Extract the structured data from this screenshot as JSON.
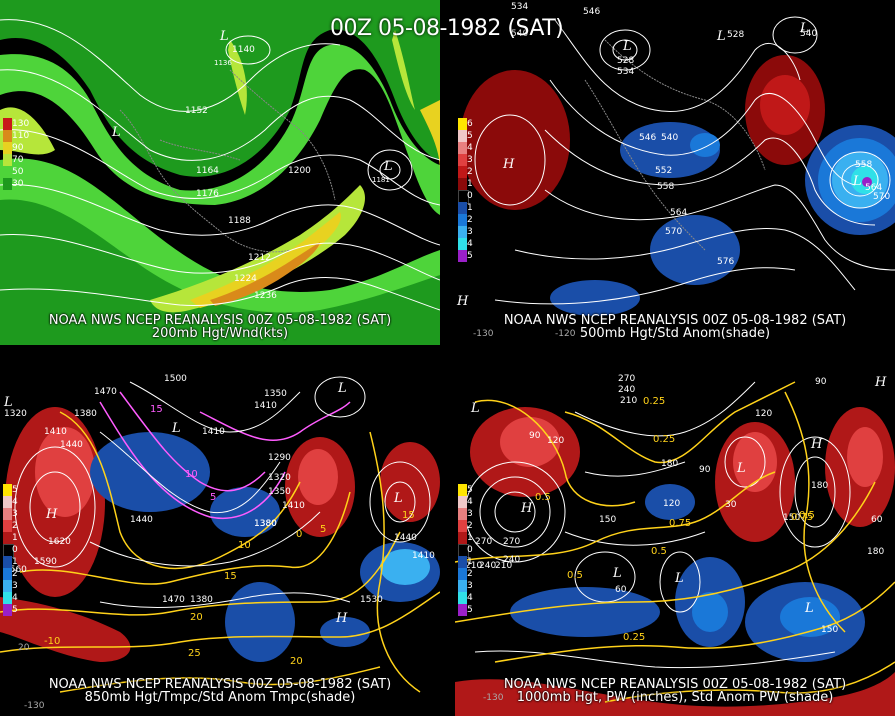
{
  "title": "00Z 05-08-1982 (SAT)",
  "panels": [
    {
      "id": "p200",
      "caption1": "NOAA NWS NCEP REANALYSIS 00Z 05-08-1982 (SAT)",
      "caption2": "200mb Hgt/Wnd(kts)",
      "legend": [
        {
          "label": "130",
          "color": "#c8161a"
        },
        {
          "label": "110",
          "color": "#d98a1a"
        },
        {
          "label": "90",
          "color": "#e8d220"
        },
        {
          "label": "70",
          "color": "#b6e63a"
        },
        {
          "label": "50",
          "color": "#4ed43a"
        },
        {
          "label": "30",
          "color": "#1e9a1e"
        }
      ],
      "contour_labels": [
        "1140",
        "1152",
        "1164",
        "1176",
        "1188",
        "1200",
        "1212",
        "1224",
        "1236"
      ],
      "center_labels": [
        "L",
        "L",
        "L",
        "1136",
        "1181"
      ]
    },
    {
      "id": "p500",
      "caption1": "NOAA NWS NCEP REANALYSIS 00Z 05-08-1982 (SAT)",
      "caption2": "500mb Hgt/Std Anom(shade)",
      "legend": [
        {
          "label": "6",
          "color": "#ffe400"
        },
        {
          "label": "5",
          "color": "#f0c8c8"
        },
        {
          "label": "4",
          "color": "#e88080"
        },
        {
          "label": "3",
          "color": "#e04040"
        },
        {
          "label": "2",
          "color": "#c01818"
        },
        {
          "label": "1",
          "color": "#8b0a0a"
        },
        {
          "label": "0",
          "color": "#000000"
        },
        {
          "label": "1",
          "color": "#1a4ea8"
        },
        {
          "label": "2",
          "color": "#1a78d8"
        },
        {
          "label": "3",
          "color": "#3ab0f0"
        },
        {
          "label": "4",
          "color": "#30e0e8"
        },
        {
          "label": "5",
          "color": "#9a20c8"
        }
      ],
      "contour_labels": [
        "534",
        "546",
        "528",
        "540",
        "534",
        "528",
        "540",
        "546",
        "540",
        "552",
        "558",
        "564",
        "570",
        "576",
        "558",
        "564",
        "570"
      ],
      "center_labels": [
        "H",
        "L",
        "L",
        "L",
        "L",
        "H"
      ],
      "axis_labels": [
        "-130",
        "-120"
      ]
    },
    {
      "id": "p850",
      "caption1": "NOAA NWS NCEP REANALYSIS 00Z 05-08-1982 (SAT)",
      "caption2": "850mb Hgt/Tmpc/Std Anom Tmpc(shade)",
      "legend": [
        {
          "label": "5",
          "color": "#ffe400"
        },
        {
          "label": "4",
          "color": "#f0c8c8"
        },
        {
          "label": "3",
          "color": "#e88080"
        },
        {
          "label": "2",
          "color": "#e04040"
        },
        {
          "label": "1",
          "color": "#b01818"
        },
        {
          "label": "0",
          "color": "#000000"
        },
        {
          "label": "1",
          "color": "#1a4ea8"
        },
        {
          "label": "2",
          "color": "#1a78d8"
        },
        {
          "label": "3",
          "color": "#3ab0f0"
        },
        {
          "label": "4",
          "color": "#30e0e8"
        },
        {
          "label": "5",
          "color": "#9a20c8"
        }
      ],
      "contour_labels": [
        "1500",
        "1470",
        "1410",
        "1320",
        "1380",
        "1410",
        "1440",
        "1620",
        "1590",
        "1560",
        "1440",
        "1380",
        "1410",
        "1350",
        "1290",
        "1320",
        "1350",
        "1410",
        "1380",
        "1470",
        "1530",
        "1440",
        "1410",
        "1380"
      ],
      "temp_labels": [
        "15",
        "10",
        "5",
        "0",
        "5",
        "10",
        "15",
        "20",
        "25",
        "-10",
        "15",
        "20"
      ],
      "center_labels": [
        "H",
        "L",
        "L",
        "L",
        "L",
        "H"
      ],
      "axis_labels": [
        "20",
        "-130"
      ]
    },
    {
      "id": "p1000",
      "caption1": "NOAA NWS NCEP REANALYSIS 00Z 05-08-1982 (SAT)",
      "caption2": "1000mb Hgt, PW (inches), Std Anom PW (shade)",
      "legend": [
        {
          "label": "5",
          "color": "#ffe400"
        },
        {
          "label": "4",
          "color": "#f0c8c8"
        },
        {
          "label": "3",
          "color": "#e88080"
        },
        {
          "label": "2",
          "color": "#e04040"
        },
        {
          "label": "1",
          "color": "#b01818"
        },
        {
          "label": "0",
          "color": "#000000"
        },
        {
          "label": "1",
          "color": "#1a4ea8"
        },
        {
          "label": "2",
          "color": "#1a78d8"
        },
        {
          "label": "3",
          "color": "#3ab0f0"
        },
        {
          "label": "4",
          "color": "#30e0e8"
        },
        {
          "label": "5",
          "color": "#9a20c8"
        }
      ],
      "contour_labels": [
        "270",
        "240",
        "210",
        "90",
        "120",
        "150",
        "180",
        "270",
        "240",
        "210",
        "60",
        "30",
        "90",
        "120",
        "150",
        "180",
        "90",
        "60",
        "120",
        "150",
        "180",
        "210",
        "240",
        "270"
      ],
      "pw_labels": [
        "0.25",
        "0.5",
        "0.75",
        "0.5",
        "0.25",
        "0.5",
        "0.75",
        "0.5",
        "0.25"
      ],
      "center_labels": [
        "H",
        "L",
        "L",
        "L",
        "H",
        "H",
        "L",
        "L"
      ],
      "axis_labels": [
        "-130"
      ]
    }
  ]
}
